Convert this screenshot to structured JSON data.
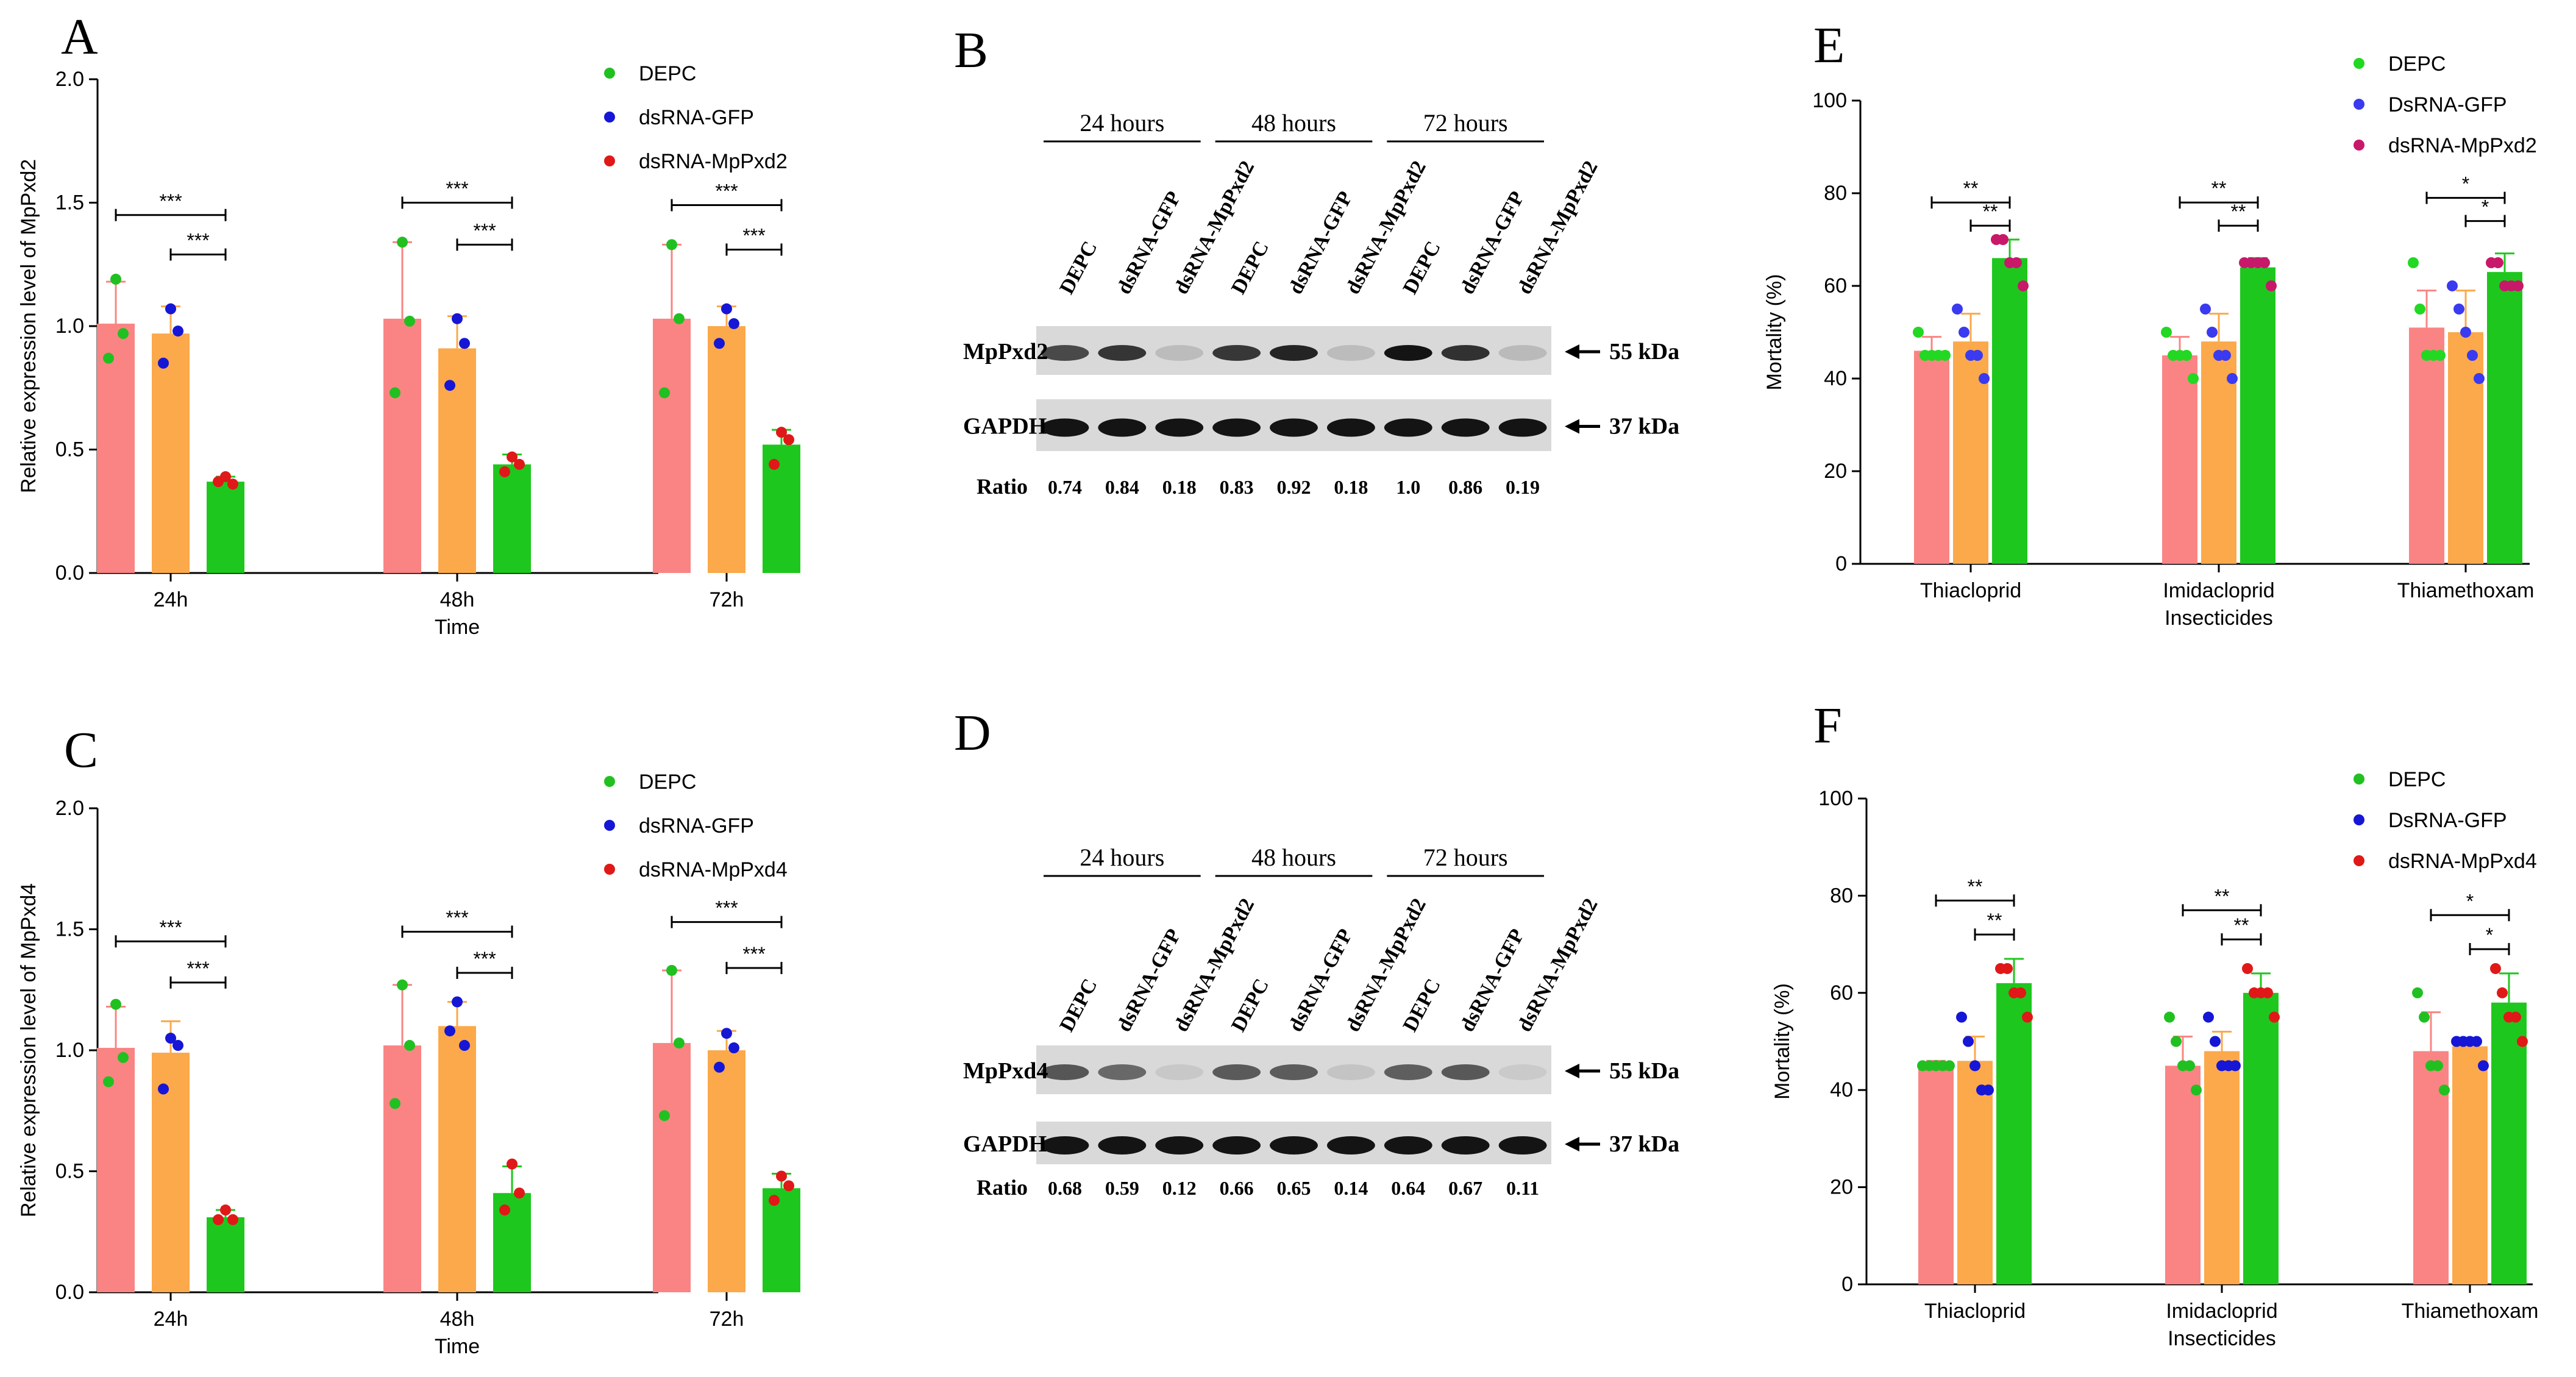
{
  "panels": {
    "A": "A",
    "B": "B",
    "C": "C",
    "D": "D",
    "E": "E",
    "F": "F"
  },
  "colors": {
    "bar_depc": "#fa8484",
    "bar_gfp": "#fba94a",
    "bar_target": "#1ec71e",
    "dot_green": "#21c021",
    "dot_blue": "#1616d6",
    "dot_red": "#e01818",
    "dot_magenta": "#c8186a",
    "dot_bright_green": "#22d822",
    "dot_light_blue": "#3a3af0"
  },
  "chart_data": [
    {
      "id": "A",
      "type": "bar",
      "categories": [
        "24h",
        "48h",
        "72h"
      ],
      "xlabel": "Time",
      "ylabel": "Relative expression level of MpPxd2",
      "ylim": [
        0,
        2.0
      ],
      "yticks": [
        "0.0",
        "0.5",
        "1.0",
        "1.5",
        "2.0"
      ],
      "legend_position": "top-right",
      "series": [
        {
          "name": "DEPC",
          "values": [
            1.01,
            1.03,
            1.03
          ],
          "err": [
            0.17,
            0.31,
            0.3
          ],
          "points": [
            [
              1.19,
              0.87,
              0.97
            ],
            [
              1.34,
              0.73,
              1.02
            ],
            [
              1.33,
              0.73,
              1.03
            ]
          ]
        },
        {
          "name": "dsRNA-GFP",
          "values": [
            0.97,
            0.91,
            1.0
          ],
          "err": [
            0.11,
            0.13,
            0.08
          ],
          "points": [
            [
              1.07,
              0.85,
              0.98
            ],
            [
              1.03,
              0.76,
              0.93
            ],
            [
              1.07,
              0.93,
              1.01
            ]
          ]
        },
        {
          "name": "dsRNA-MpPxd2",
          "values": [
            0.37,
            0.44,
            0.52
          ],
          "err": [
            0.02,
            0.04,
            0.06
          ],
          "points": [
            [
              0.39,
              0.37,
              0.36
            ],
            [
              0.47,
              0.41,
              0.44
            ],
            [
              0.57,
              0.44,
              0.54
            ]
          ]
        }
      ],
      "significance": [
        {
          "group": 0,
          "from": 0,
          "to": 2,
          "y": 1.45,
          "label": "***"
        },
        {
          "group": 0,
          "from": 1,
          "to": 2,
          "y": 1.29,
          "label": "***"
        },
        {
          "group": 1,
          "from": 0,
          "to": 2,
          "y": 1.5,
          "label": "***"
        },
        {
          "group": 1,
          "from": 1,
          "to": 2,
          "y": 1.33,
          "label": "***"
        },
        {
          "group": 2,
          "from": 0,
          "to": 2,
          "y": 1.49,
          "label": "***"
        },
        {
          "group": 2,
          "from": 1,
          "to": 2,
          "y": 1.31,
          "label": "***"
        }
      ]
    },
    {
      "id": "C",
      "type": "bar",
      "categories": [
        "24h",
        "48h",
        "72h"
      ],
      "xlabel": "Time",
      "ylabel": "Relative expression level of MpPxd4",
      "ylim": [
        0,
        2.0
      ],
      "yticks": [
        "0.0",
        "0.5",
        "1.0",
        "1.5",
        "2.0"
      ],
      "legend_position": "top-right",
      "series": [
        {
          "name": "DEPC",
          "values": [
            1.01,
            1.02,
            1.03
          ],
          "err": [
            0.17,
            0.25,
            0.3
          ],
          "points": [
            [
              1.19,
              0.87,
              0.97
            ],
            [
              1.27,
              0.78,
              1.02
            ],
            [
              1.33,
              0.73,
              1.03
            ]
          ]
        },
        {
          "name": "dsRNA-GFP",
          "values": [
            0.99,
            1.1,
            1.0
          ],
          "err": [
            0.13,
            0.1,
            0.08
          ],
          "points": [
            [
              1.05,
              0.84,
              1.02
            ],
            [
              1.2,
              1.08,
              1.02
            ],
            [
              1.07,
              0.93,
              1.01
            ]
          ]
        },
        {
          "name": "dsRNA-MpPxd4",
          "values": [
            0.31,
            0.41,
            0.43
          ],
          "err": [
            0.03,
            0.11,
            0.06
          ],
          "points": [
            [
              0.34,
              0.3,
              0.3
            ],
            [
              0.53,
              0.34,
              0.41
            ],
            [
              0.48,
              0.38,
              0.44
            ]
          ]
        }
      ],
      "significance": [
        {
          "group": 0,
          "from": 0,
          "to": 2,
          "y": 1.45,
          "label": "***"
        },
        {
          "group": 0,
          "from": 1,
          "to": 2,
          "y": 1.28,
          "label": "***"
        },
        {
          "group": 1,
          "from": 0,
          "to": 2,
          "y": 1.49,
          "label": "***"
        },
        {
          "group": 1,
          "from": 1,
          "to": 2,
          "y": 1.32,
          "label": "***"
        },
        {
          "group": 2,
          "from": 0,
          "to": 2,
          "y": 1.53,
          "label": "***"
        },
        {
          "group": 2,
          "from": 1,
          "to": 2,
          "y": 1.34,
          "label": "***"
        }
      ]
    },
    {
      "id": "E",
      "type": "bar",
      "categories": [
        "Thiacloprid",
        "Imidacloprid",
        "Thiamethoxam"
      ],
      "xlabel": "Insecticides",
      "ylabel": "Mortality (%)",
      "ylim": [
        0,
        100
      ],
      "yticks": [
        "0",
        "20",
        "40",
        "60",
        "80",
        "100"
      ],
      "legend_position": "top-right",
      "series": [
        {
          "name": "DEPC",
          "values": [
            46,
            45,
            51
          ],
          "err": [
            3,
            4,
            8
          ],
          "points": [
            [
              50,
              45,
              45,
              45,
              45
            ],
            [
              50,
              45,
              45,
              45,
              40
            ],
            [
              65,
              55,
              45,
              45,
              45
            ]
          ]
        },
        {
          "name": "DsRNA-GFP",
          "values": [
            48,
            48,
            50
          ],
          "err": [
            6,
            6,
            9
          ],
          "points": [
            [
              55,
              50,
              45,
              45,
              40
            ],
            [
              55,
              50,
              45,
              45,
              40
            ],
            [
              60,
              55,
              50,
              45,
              40
            ]
          ]
        },
        {
          "name": "dsRNA-MpPxd2",
          "values": [
            66,
            64,
            63
          ],
          "err": [
            4,
            2,
            4
          ],
          "points": [
            [
              70,
              70,
              65,
              65,
              60
            ],
            [
              65,
              65,
              65,
              65,
              60
            ],
            [
              65,
              65,
              60,
              60,
              60
            ]
          ]
        }
      ],
      "significance": [
        {
          "group": 0,
          "from": 0,
          "to": 2,
          "y": 78,
          "label": "**"
        },
        {
          "group": 0,
          "from": 1,
          "to": 2,
          "y": 73,
          "label": "**"
        },
        {
          "group": 1,
          "from": 0,
          "to": 2,
          "y": 78,
          "label": "**"
        },
        {
          "group": 1,
          "from": 1,
          "to": 2,
          "y": 73,
          "label": "**"
        },
        {
          "group": 2,
          "from": 0,
          "to": 2,
          "y": 79,
          "label": "*"
        },
        {
          "group": 2,
          "from": 1,
          "to": 2,
          "y": 74,
          "label": "*"
        }
      ]
    },
    {
      "id": "F",
      "type": "bar",
      "categories": [
        "Thiacloprid",
        "Imidacloprid",
        "Thiamethoxam"
      ],
      "xlabel": "Insecticides",
      "ylabel": "Mortality (%)",
      "ylim": [
        0,
        100
      ],
      "yticks": [
        "0",
        "20",
        "40",
        "60",
        "80",
        "100"
      ],
      "legend_position": "top-right",
      "series": [
        {
          "name": "DEPC",
          "values": [
            45,
            45,
            48
          ],
          "err": [
            1,
            6,
            8
          ],
          "points": [
            [
              45,
              45,
              45,
              45,
              45
            ],
            [
              55,
              50,
              45,
              45,
              40
            ],
            [
              60,
              55,
              45,
              45,
              40
            ]
          ]
        },
        {
          "name": "DsRNA-GFP",
          "values": [
            46,
            48,
            49
          ],
          "err": [
            5,
            4,
            1
          ],
          "points": [
            [
              55,
              50,
              45,
              40,
              40
            ],
            [
              55,
              50,
              45,
              45,
              45
            ],
            [
              50,
              50,
              50,
              50,
              45
            ]
          ]
        },
        {
          "name": "dsRNA-MpPxd4",
          "values": [
            62,
            60,
            58
          ],
          "err": [
            5,
            4,
            6
          ],
          "points": [
            [
              65,
              65,
              60,
              60,
              55
            ],
            [
              65,
              60,
              60,
              60,
              55
            ],
            [
              65,
              60,
              55,
              55,
              50
            ]
          ]
        }
      ],
      "significance": [
        {
          "group": 0,
          "from": 0,
          "to": 2,
          "y": 79,
          "label": "**"
        },
        {
          "group": 0,
          "from": 1,
          "to": 2,
          "y": 72,
          "label": "**"
        },
        {
          "group": 1,
          "from": 0,
          "to": 2,
          "y": 77,
          "label": "**"
        },
        {
          "group": 1,
          "from": 1,
          "to": 2,
          "y": 71,
          "label": "**"
        },
        {
          "group": 2,
          "from": 0,
          "to": 2,
          "y": 76,
          "label": "*"
        },
        {
          "group": 2,
          "from": 1,
          "to": 2,
          "y": 69,
          "label": "*"
        }
      ]
    }
  ],
  "blots": [
    {
      "id": "B",
      "hours": [
        "24 hours",
        "48 hours",
        "72 hours"
      ],
      "lanes": [
        "DEPC",
        "dsRNA-GFP",
        "dsRNA-MpPxd2",
        "DEPC",
        "dsRNA-GFP",
        "dsRNA-MpPxd2",
        "DEPC",
        "dsRNA-GFP",
        "dsRNA-MpPxd2"
      ],
      "rows": [
        {
          "label": "MpPxd2",
          "kda": "55 kDa",
          "intensity": [
            0.74,
            0.84,
            0.18,
            0.83,
            0.92,
            0.18,
            1.0,
            0.86,
            0.19
          ]
        },
        {
          "label": "GAPDH",
          "kda": "37 kDa",
          "intensity": [
            1,
            1,
            1,
            1,
            1,
            1,
            1,
            1,
            1
          ]
        }
      ],
      "ratio_label": "Ratio",
      "ratios": [
        "0.74",
        "0.84",
        "0.18",
        "0.83",
        "0.92",
        "0.18",
        "1.0",
        "0.86",
        "0.19"
      ]
    },
    {
      "id": "D",
      "hours": [
        "24 hours",
        "48 hours",
        "72 hours"
      ],
      "lanes": [
        "DEPC",
        "dsRNA-GFP",
        "dsRNA-MpPxd2",
        "DEPC",
        "dsRNA-GFP",
        "dsRNA-MpPxd2",
        "DEPC",
        "dsRNA-GFP",
        "dsRNA-MpPxd2"
      ],
      "rows": [
        {
          "label": "MpPxd4",
          "kda": "55 kDa",
          "intensity": [
            0.68,
            0.59,
            0.12,
            0.66,
            0.65,
            0.14,
            0.64,
            0.67,
            0.11
          ]
        },
        {
          "label": "GAPDH",
          "kda": "37 kDa",
          "intensity": [
            1,
            1,
            1,
            1,
            1,
            1,
            1,
            1,
            1
          ]
        }
      ],
      "ratio_label": "Ratio",
      "ratios": [
        "0.68",
        "0.59",
        "0.12",
        "0.66",
        "0.65",
        "0.14",
        "0.64",
        "0.67",
        "0.11"
      ]
    }
  ]
}
